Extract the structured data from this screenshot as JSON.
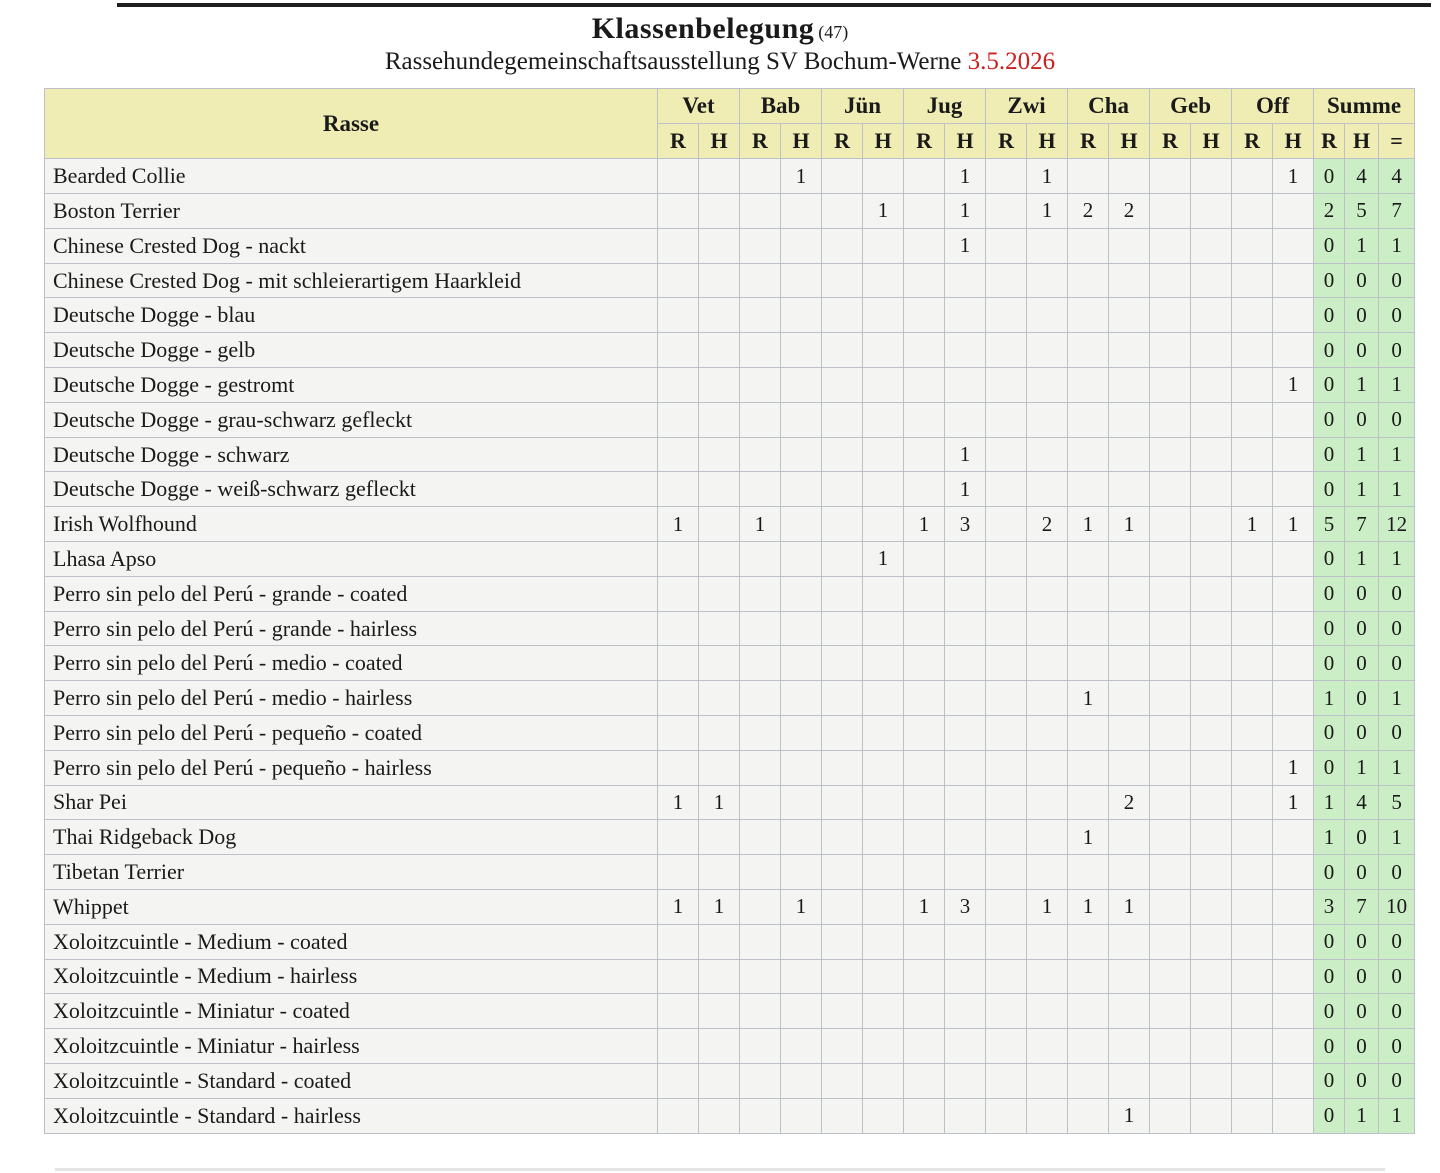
{
  "title": {
    "text": "Klassenbelegung",
    "count": "(47)"
  },
  "subtitle": {
    "text": "Rassehundegemeinschaftsausstellung SV Bochum-Werne",
    "date": "3.5.2026"
  },
  "table": {
    "rasse_header": "Rasse",
    "groups": [
      "Vet",
      "Bab",
      "Jün",
      "Jug",
      "Zwi",
      "Cha",
      "Geb",
      "Off"
    ],
    "summe_header": "Summe",
    "sub_row": [
      "R",
      "H",
      "R",
      "H",
      "R",
      "H",
      "R",
      "H",
      "R",
      "H",
      "R",
      "H",
      "R",
      "H",
      "R",
      "H"
    ],
    "summe_sub": [
      "R",
      "H",
      "="
    ],
    "rows": [
      {
        "rasse": "Bearded Collie",
        "cells": [
          "",
          "",
          "",
          "1",
          "",
          "",
          "",
          "1",
          "",
          "1",
          "",
          "",
          "",
          "",
          "",
          "1"
        ],
        "summe": [
          "0",
          "4",
          "4"
        ]
      },
      {
        "rasse": "Boston Terrier",
        "cells": [
          "",
          "",
          "",
          "",
          "",
          "1",
          "",
          "1",
          "",
          "1",
          "2",
          "2",
          "",
          "",
          "",
          ""
        ],
        "summe": [
          "2",
          "5",
          "7"
        ]
      },
      {
        "rasse": "Chinese Crested Dog - nackt",
        "cells": [
          "",
          "",
          "",
          "",
          "",
          "",
          "",
          "1",
          "",
          "",
          "",
          "",
          "",
          "",
          "",
          ""
        ],
        "summe": [
          "0",
          "1",
          "1"
        ]
      },
      {
        "rasse": "Chinese Crested Dog - mit schleierartigem Haarkleid",
        "cells": [
          "",
          "",
          "",
          "",
          "",
          "",
          "",
          "",
          "",
          "",
          "",
          "",
          "",
          "",
          "",
          ""
        ],
        "summe": [
          "0",
          "0",
          "0"
        ]
      },
      {
        "rasse": "Deutsche Dogge - blau",
        "cells": [
          "",
          "",
          "",
          "",
          "",
          "",
          "",
          "",
          "",
          "",
          "",
          "",
          "",
          "",
          "",
          ""
        ],
        "summe": [
          "0",
          "0",
          "0"
        ]
      },
      {
        "rasse": "Deutsche Dogge - gelb",
        "cells": [
          "",
          "",
          "",
          "",
          "",
          "",
          "",
          "",
          "",
          "",
          "",
          "",
          "",
          "",
          "",
          ""
        ],
        "summe": [
          "0",
          "0",
          "0"
        ]
      },
      {
        "rasse": "Deutsche Dogge - gestromt",
        "cells": [
          "",
          "",
          "",
          "",
          "",
          "",
          "",
          "",
          "",
          "",
          "",
          "",
          "",
          "",
          "",
          "1"
        ],
        "summe": [
          "0",
          "1",
          "1"
        ]
      },
      {
        "rasse": "Deutsche Dogge - grau-schwarz gefleckt",
        "cells": [
          "",
          "",
          "",
          "",
          "",
          "",
          "",
          "",
          "",
          "",
          "",
          "",
          "",
          "",
          "",
          ""
        ],
        "summe": [
          "0",
          "0",
          "0"
        ]
      },
      {
        "rasse": "Deutsche Dogge - schwarz",
        "cells": [
          "",
          "",
          "",
          "",
          "",
          "",
          "",
          "1",
          "",
          "",
          "",
          "",
          "",
          "",
          "",
          ""
        ],
        "summe": [
          "0",
          "1",
          "1"
        ]
      },
      {
        "rasse": "Deutsche Dogge - weiß-schwarz gefleckt",
        "cells": [
          "",
          "",
          "",
          "",
          "",
          "",
          "",
          "1",
          "",
          "",
          "",
          "",
          "",
          "",
          "",
          ""
        ],
        "summe": [
          "0",
          "1",
          "1"
        ]
      },
      {
        "rasse": "Irish Wolfhound",
        "cells": [
          "1",
          "",
          "1",
          "",
          "",
          "",
          "1",
          "3",
          "",
          "2",
          "1",
          "1",
          "",
          "",
          "1",
          "1"
        ],
        "summe": [
          "5",
          "7",
          "12"
        ]
      },
      {
        "rasse": "Lhasa Apso",
        "cells": [
          "",
          "",
          "",
          "",
          "",
          "1",
          "",
          "",
          "",
          "",
          "",
          "",
          "",
          "",
          "",
          ""
        ],
        "summe": [
          "0",
          "1",
          "1"
        ]
      },
      {
        "rasse": "Perro sin pelo del Perú - grande - coated",
        "cells": [
          "",
          "",
          "",
          "",
          "",
          "",
          "",
          "",
          "",
          "",
          "",
          "",
          "",
          "",
          "",
          ""
        ],
        "summe": [
          "0",
          "0",
          "0"
        ]
      },
      {
        "rasse": "Perro sin pelo del Perú - grande - hairless",
        "cells": [
          "",
          "",
          "",
          "",
          "",
          "",
          "",
          "",
          "",
          "",
          "",
          "",
          "",
          "",
          "",
          ""
        ],
        "summe": [
          "0",
          "0",
          "0"
        ]
      },
      {
        "rasse": "Perro sin pelo del Perú - medio - coated",
        "cells": [
          "",
          "",
          "",
          "",
          "",
          "",
          "",
          "",
          "",
          "",
          "",
          "",
          "",
          "",
          "",
          ""
        ],
        "summe": [
          "0",
          "0",
          "0"
        ]
      },
      {
        "rasse": "Perro sin pelo del Perú - medio - hairless",
        "cells": [
          "",
          "",
          "",
          "",
          "",
          "",
          "",
          "",
          "",
          "",
          "1",
          "",
          "",
          "",
          "",
          ""
        ],
        "summe": [
          "1",
          "0",
          "1"
        ]
      },
      {
        "rasse": "Perro sin pelo del Perú - pequeño - coated",
        "cells": [
          "",
          "",
          "",
          "",
          "",
          "",
          "",
          "",
          "",
          "",
          "",
          "",
          "",
          "",
          "",
          ""
        ],
        "summe": [
          "0",
          "0",
          "0"
        ]
      },
      {
        "rasse": "Perro sin pelo del Perú - pequeño - hairless",
        "cells": [
          "",
          "",
          "",
          "",
          "",
          "",
          "",
          "",
          "",
          "",
          "",
          "",
          "",
          "",
          "",
          "1"
        ],
        "summe": [
          "0",
          "1",
          "1"
        ]
      },
      {
        "rasse": "Shar Pei",
        "cells": [
          "1",
          "1",
          "",
          "",
          "",
          "",
          "",
          "",
          "",
          "",
          "",
          "2",
          "",
          "",
          "",
          "1"
        ],
        "summe": [
          "1",
          "4",
          "5"
        ]
      },
      {
        "rasse": "Thai Ridgeback Dog",
        "cells": [
          "",
          "",
          "",
          "",
          "",
          "",
          "",
          "",
          "",
          "",
          "1",
          "",
          "",
          "",
          "",
          ""
        ],
        "summe": [
          "1",
          "0",
          "1"
        ]
      },
      {
        "rasse": "Tibetan Terrier",
        "cells": [
          "",
          "",
          "",
          "",
          "",
          "",
          "",
          "",
          "",
          "",
          "",
          "",
          "",
          "",
          "",
          ""
        ],
        "summe": [
          "0",
          "0",
          "0"
        ]
      },
      {
        "rasse": "Whippet",
        "cells": [
          "1",
          "1",
          "",
          "1",
          "",
          "",
          "1",
          "3",
          "",
          "1",
          "1",
          "1",
          "",
          "",
          "",
          ""
        ],
        "summe": [
          "3",
          "7",
          "10"
        ]
      },
      {
        "rasse": "Xoloitzcuintle - Medium - coated",
        "cells": [
          "",
          "",
          "",
          "",
          "",
          "",
          "",
          "",
          "",
          "",
          "",
          "",
          "",
          "",
          "",
          ""
        ],
        "summe": [
          "0",
          "0",
          "0"
        ]
      },
      {
        "rasse": "Xoloitzcuintle - Medium - hairless",
        "cells": [
          "",
          "",
          "",
          "",
          "",
          "",
          "",
          "",
          "",
          "",
          "",
          "",
          "",
          "",
          "",
          ""
        ],
        "summe": [
          "0",
          "0",
          "0"
        ]
      },
      {
        "rasse": "Xoloitzcuintle - Miniatur - coated",
        "cells": [
          "",
          "",
          "",
          "",
          "",
          "",
          "",
          "",
          "",
          "",
          "",
          "",
          "",
          "",
          "",
          ""
        ],
        "summe": [
          "0",
          "0",
          "0"
        ]
      },
      {
        "rasse": "Xoloitzcuintle - Miniatur - hairless",
        "cells": [
          "",
          "",
          "",
          "",
          "",
          "",
          "",
          "",
          "",
          "",
          "",
          "",
          "",
          "",
          "",
          ""
        ],
        "summe": [
          "0",
          "0",
          "0"
        ]
      },
      {
        "rasse": "Xoloitzcuintle - Standard - coated",
        "cells": [
          "",
          "",
          "",
          "",
          "",
          "",
          "",
          "",
          "",
          "",
          "",
          "",
          "",
          "",
          "",
          ""
        ],
        "summe": [
          "0",
          "0",
          "0"
        ]
      },
      {
        "rasse": "Xoloitzcuintle - Standard - hairless",
        "cells": [
          "",
          "",
          "",
          "",
          "",
          "",
          "",
          "",
          "",
          "",
          "",
          "1",
          "",
          "",
          "",
          ""
        ],
        "summe": [
          "0",
          "1",
          "1"
        ]
      }
    ]
  },
  "colors": {
    "header_bg": "#f0edb4",
    "cell_bg": "#f4f4f2",
    "summe_bg": "#cceec6",
    "date_red": "#cc1f1f",
    "grid": "#bcc0c7",
    "rule": "#1e1e1e"
  }
}
